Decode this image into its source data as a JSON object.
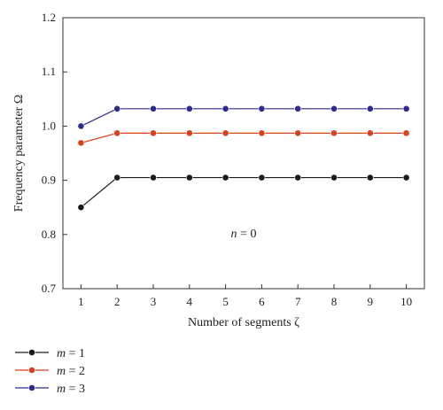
{
  "chart_data": {
    "type": "line",
    "xlabel": "Number of segments ζ",
    "ylabel": "Frequency parameter Ω",
    "x": [
      1,
      2,
      3,
      4,
      5,
      6,
      7,
      8,
      9,
      10
    ],
    "xlim": [
      0.5,
      10.5
    ],
    "ylim": [
      0.7,
      1.2
    ],
    "xticks": [
      "1",
      "2",
      "3",
      "4",
      "5",
      "6",
      "7",
      "8",
      "9",
      "10"
    ],
    "yticks": [
      "0.7",
      "0.8",
      "0.9",
      "1.0",
      "1.1",
      "1.2"
    ],
    "ytick_values": [
      0.7,
      0.8,
      0.9,
      1.0,
      1.1,
      1.2
    ],
    "annotation": {
      "var": "n",
      "rest": " = 0",
      "x": 5.5,
      "y": 0.795
    },
    "legend_position": "bottom-left below plot",
    "grid": false,
    "series": [
      {
        "name": "m = 1",
        "name_var": "m",
        "name_rest": " = 1",
        "color": "#1a1a1a",
        "values": [
          0.85,
          0.905,
          0.905,
          0.905,
          0.905,
          0.905,
          0.905,
          0.905,
          0.905,
          0.905
        ]
      },
      {
        "name": "m = 2",
        "name_var": "m",
        "name_rest": " = 2",
        "color": "#d9411e",
        "values": [
          0.969,
          0.987,
          0.987,
          0.987,
          0.987,
          0.987,
          0.987,
          0.987,
          0.987,
          0.987
        ]
      },
      {
        "name": "m = 3",
        "name_var": "m",
        "name_rest": " = 3",
        "color": "#2e2a8f",
        "values": [
          1.0,
          1.032,
          1.032,
          1.032,
          1.032,
          1.032,
          1.032,
          1.032,
          1.032,
          1.032
        ]
      }
    ]
  }
}
